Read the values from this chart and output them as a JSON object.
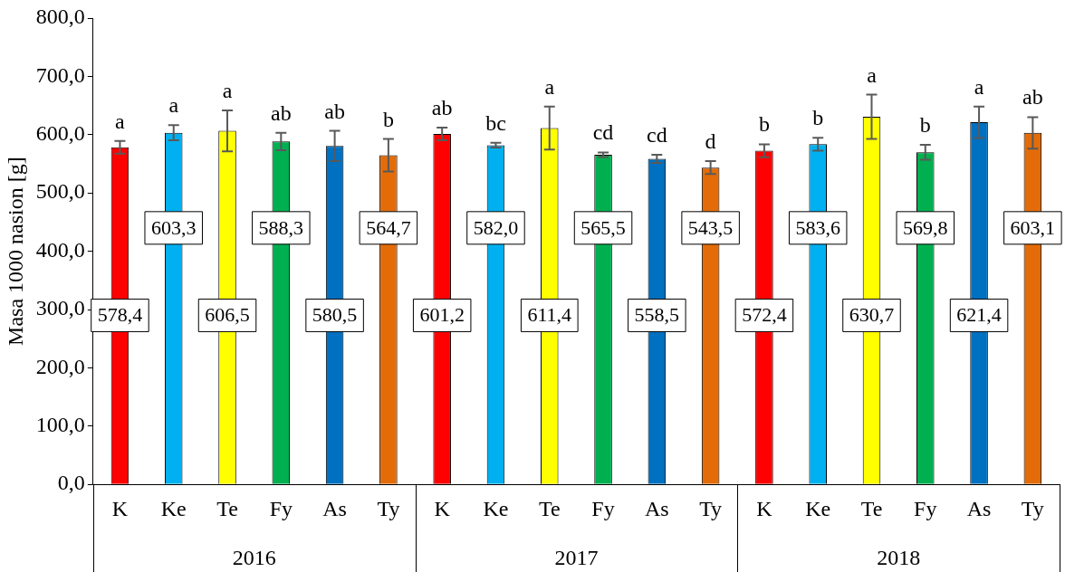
{
  "chart_data": {
    "type": "bar",
    "ylabel": "Masa 1000 nasion [g]",
    "categories": [
      "K",
      "Ke",
      "Te",
      "Fy",
      "As",
      "Ty",
      "K",
      "Ke",
      "Te",
      "Fy",
      "As",
      "Ty",
      "K",
      "Ke",
      "Te",
      "Fy",
      "As",
      "Ty"
    ],
    "values": [
      578.4,
      603.3,
      606.5,
      588.3,
      580.5,
      564.7,
      601.2,
      582.0,
      611.4,
      565.5,
      558.5,
      543.5,
      572.4,
      583.6,
      630.7,
      569.8,
      621.4,
      603.1
    ],
    "value_labels": [
      "578,4",
      "603,3",
      "606,5",
      "588,3",
      "580,5",
      "564,7",
      "601,2",
      "582,0",
      "611,4",
      "565,5",
      "558,5",
      "543,5",
      "572,4",
      "583,6",
      "630,7",
      "569,8",
      "621,4",
      "603,1"
    ],
    "colors": [
      "#ff0000",
      "#00b0f0",
      "#ffff00",
      "#00b050",
      "#0070c0",
      "#e36c09",
      "#ff0000",
      "#00b0f0",
      "#ffff00",
      "#00b050",
      "#0070c0",
      "#e36c09",
      "#ff0000",
      "#00b0f0",
      "#ffff00",
      "#00b050",
      "#0070c0",
      "#e36c09"
    ],
    "errors": [
      11,
      13,
      35,
      15,
      26,
      28,
      11,
      4,
      37,
      4,
      7,
      11,
      11,
      11,
      38,
      13,
      27,
      27
    ],
    "ylim": [
      0,
      800
    ],
    "yticks": [
      {
        "value": 0,
        "label": "0,0"
      },
      {
        "value": 100,
        "label": "100,0"
      },
      {
        "value": 200,
        "label": "200,0"
      },
      {
        "value": 300,
        "label": "300,0"
      },
      {
        "value": 400,
        "label": "400,0"
      },
      {
        "value": 500,
        "label": "500,0"
      },
      {
        "value": 600,
        "label": "600,0"
      },
      {
        "value": 700,
        "label": "700,0"
      },
      {
        "value": 800,
        "label": "800,0"
      }
    ],
    "annotations": [
      "a",
      "a",
      "a",
      "ab",
      "ab",
      "b",
      "ab",
      "bc",
      "a",
      "cd",
      "cd",
      "d",
      "b",
      "b",
      "a",
      "b",
      "a",
      "ab",
      "2016",
      "2017",
      "2018"
    ],
    "grid": false,
    "legend": false
  }
}
